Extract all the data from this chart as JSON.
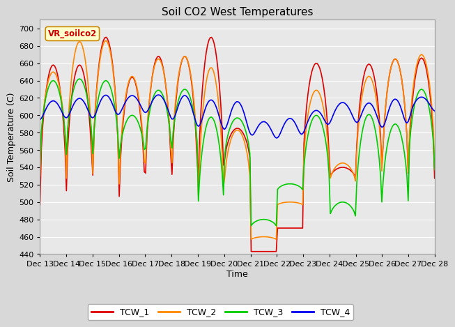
{
  "title": "Soil CO2 West Temperatures",
  "xlabel": "Time",
  "ylabel": "Soil Temperature (C)",
  "annotation": "VR_soilco2",
  "ylim": [
    440,
    710
  ],
  "yticks": [
    440,
    460,
    480,
    500,
    520,
    540,
    560,
    580,
    600,
    620,
    640,
    660,
    680,
    700
  ],
  "series_colors": [
    "#dd0000",
    "#ff8800",
    "#00cc00",
    "#0000ee"
  ],
  "series_names": [
    "TCW_1",
    "TCW_2",
    "TCW_3",
    "TCW_4"
  ],
  "x_tick_labels": [
    "Dec 13",
    "Dec 14",
    "Dec 15",
    "Dec 16",
    "Dec 17",
    "Dec 18",
    "Dec 19",
    "Dec 20",
    "Dec 21",
    "Dec 22",
    "Dec 23",
    "Dec 24",
    "Dec 25",
    "Dec 26",
    "Dec 27",
    "Dec 28"
  ],
  "background_color": "#d8d8d8",
  "plot_bg_color": "#e8e8e8",
  "grid_color": "#ffffff",
  "linewidth": 1.2
}
